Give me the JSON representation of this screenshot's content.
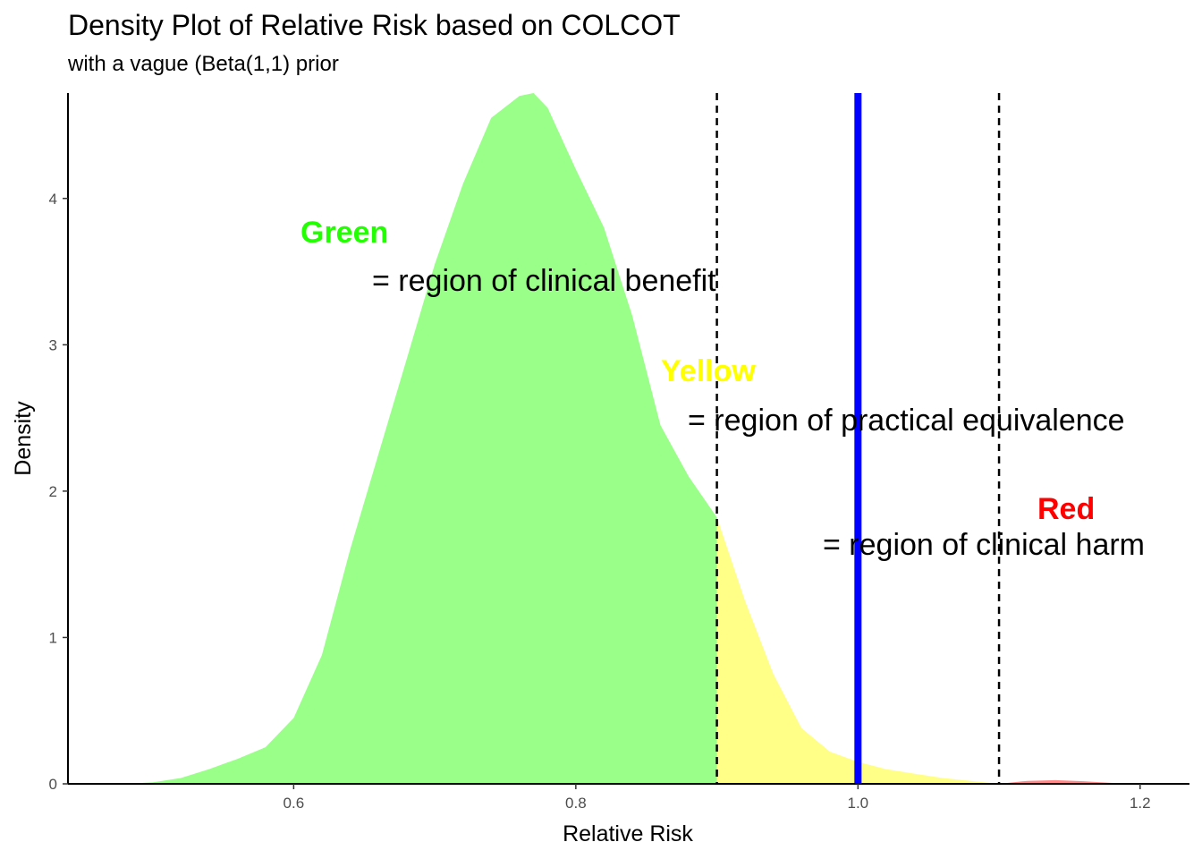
{
  "chart_data": {
    "type": "area",
    "title": "Density Plot of Relative Risk based on COLCOT",
    "subtitle": "with a vague (Beta(1,1) prior",
    "xlabel": "Relative Risk",
    "ylabel": "Density",
    "xlim": [
      0.44,
      1.235
    ],
    "ylim": [
      0,
      4.72
    ],
    "x_ticks": [
      {
        "value": 0.6,
        "label": "0.6"
      },
      {
        "value": 0.8,
        "label": "0.8"
      },
      {
        "value": 1.0,
        "label": "1.0"
      },
      {
        "value": 1.2,
        "label": "1.2"
      }
    ],
    "y_ticks": [
      {
        "value": 0,
        "label": "0"
      },
      {
        "value": 1,
        "label": "1"
      },
      {
        "value": 2,
        "label": "2"
      },
      {
        "value": 3,
        "label": "3"
      },
      {
        "value": 4,
        "label": "4"
      }
    ],
    "grid": false,
    "density": {
      "x": [
        0.48,
        0.5,
        0.52,
        0.54,
        0.56,
        0.58,
        0.6,
        0.62,
        0.64,
        0.66,
        0.68,
        0.7,
        0.72,
        0.74,
        0.76,
        0.77,
        0.78,
        0.8,
        0.82,
        0.84,
        0.86,
        0.88,
        0.9,
        0.92,
        0.94,
        0.96,
        0.98,
        1.0,
        1.02,
        1.04,
        1.06,
        1.08,
        1.1,
        1.12,
        1.14,
        1.16,
        1.18,
        1.2
      ],
      "y": [
        0.0,
        0.01,
        0.04,
        0.1,
        0.17,
        0.25,
        0.45,
        0.88,
        1.6,
        2.25,
        2.9,
        3.55,
        4.1,
        4.55,
        4.7,
        4.72,
        4.62,
        4.2,
        3.8,
        3.2,
        2.45,
        2.1,
        1.82,
        1.25,
        0.75,
        0.38,
        0.22,
        0.15,
        0.1,
        0.07,
        0.04,
        0.02,
        0.0,
        0.02,
        0.025,
        0.018,
        0.006,
        0.0
      ]
    },
    "regions": [
      {
        "name": "Green",
        "from": 0.48,
        "to": 0.9,
        "color": "#99FF88"
      },
      {
        "name": "Yellow",
        "from": 0.9,
        "to": 1.1,
        "color": "#FFFF88"
      },
      {
        "name": "Red",
        "from": 1.1,
        "to": 1.2,
        "color": "#FF8888"
      }
    ],
    "vlines": [
      {
        "x": 0.9,
        "style": "dashed",
        "color": "#000000"
      },
      {
        "x": 1.0,
        "style": "solid",
        "color": "#0000FF"
      },
      {
        "x": 1.1,
        "style": "dashed",
        "color": "#000000"
      }
    ],
    "annotations": [
      {
        "keyword": "Green",
        "keyword_color": "#22FF00",
        "text": "= region of clinical benefit"
      },
      {
        "keyword": "Yellow",
        "keyword_color": "#FFFF00",
        "text": "= region of practical equivalence"
      },
      {
        "keyword": "Red",
        "keyword_color": "#FF0000",
        "text": "= region of clinical harm"
      }
    ]
  }
}
